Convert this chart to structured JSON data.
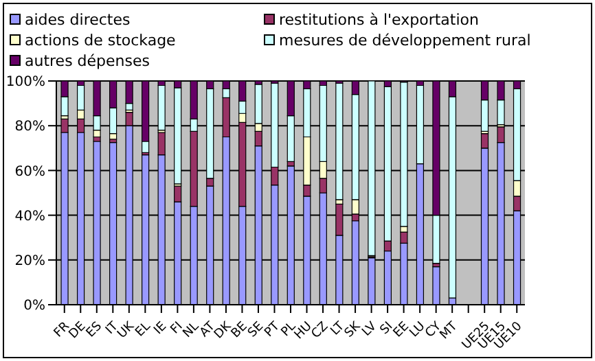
{
  "chart_data": {
    "type": "bar",
    "stacked": true,
    "legend": "top",
    "grid": "y",
    "categories": [
      "FR",
      "DE",
      "ES",
      "IT",
      "UK",
      "EL",
      "IE",
      "FI",
      "NL",
      "AT",
      "DK",
      "BE",
      "SE",
      "PT",
      "PL",
      "HU",
      "CZ",
      "LT",
      "SK",
      "LV",
      "SI",
      "EE",
      "LU",
      "CY",
      "MT",
      null,
      "UE25",
      "UE15",
      "UE10"
    ],
    "ylim": [
      0,
      100
    ],
    "yticks": [
      {
        "value": 0,
        "label": "0%"
      },
      {
        "value": 20,
        "label": "20%"
      },
      {
        "value": 40,
        "label": "40%"
      },
      {
        "value": 60,
        "label": "60%"
      },
      {
        "value": 80,
        "label": "80%"
      },
      {
        "value": 100,
        "label": "100%"
      }
    ],
    "series": [
      {
        "name": "aides directes",
        "color": "#9999ff",
        "values": [
          77,
          77,
          73,
          72.5,
          80,
          67,
          67,
          46,
          44,
          53,
          75,
          44,
          71,
          53.5,
          62,
          48.5,
          50,
          31,
          37.5,
          21,
          24,
          27.5,
          63,
          17,
          3,
          null,
          70,
          72.5,
          42
        ]
      },
      {
        "name": "restitutions à l'exportation",
        "color": "#993366",
        "values": [
          6,
          6,
          2,
          1.5,
          6,
          1,
          10,
          7,
          33.5,
          3.5,
          17.5,
          37.5,
          6.5,
          8,
          2,
          5,
          6.5,
          14,
          3,
          0.5,
          4.5,
          5,
          0,
          1.5,
          0,
          null,
          6.5,
          7,
          6.5
        ]
      },
      {
        "name": "actions de stockage",
        "color": "#ffffcc",
        "values": [
          1.5,
          4,
          3,
          2.5,
          1,
          0,
          1,
          1,
          0,
          0,
          0,
          4,
          3.5,
          0,
          0,
          21.5,
          7.5,
          2,
          6.5,
          0.5,
          0,
          2.5,
          0,
          0,
          0,
          null,
          1,
          1,
          7
        ]
      },
      {
        "name": "mesures de développement rural",
        "color": "#ccffff",
        "values": [
          8.5,
          11,
          6.5,
          11.5,
          3,
          5,
          20,
          43,
          5.5,
          40,
          4,
          5.5,
          17.5,
          37.5,
          20.5,
          21.5,
          34,
          52,
          47,
          78,
          69,
          64.5,
          35,
          21.5,
          90,
          null,
          14,
          11,
          41
        ]
      },
      {
        "name": "autres dépenses",
        "color": "#660066",
        "values": [
          7,
          2,
          15.5,
          12,
          10,
          27,
          2,
          3,
          17,
          3.5,
          3.5,
          9,
          1.5,
          1,
          15.5,
          3.5,
          2,
          1,
          6,
          0,
          2.5,
          0.5,
          2,
          60,
          7,
          null,
          8.5,
          8.5,
          3.5
        ]
      }
    ]
  }
}
